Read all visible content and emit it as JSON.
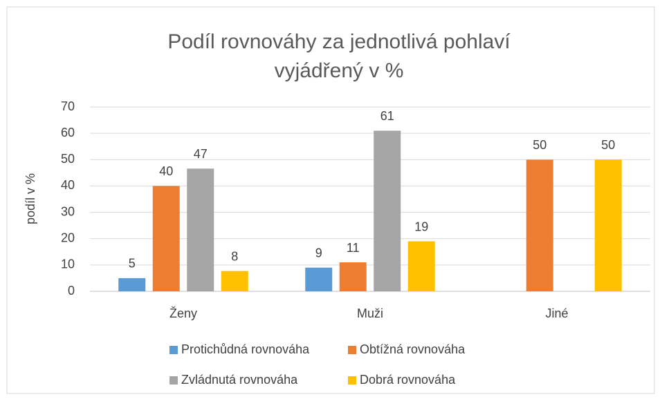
{
  "chart_data": {
    "type": "bar",
    "title": [
      "Podíl rovnováhy za jednotlivá pohlaví",
      "vyjádřený v %"
    ],
    "y_label": "podíl v %",
    "categories": [
      "Ženy",
      "Muži",
      "Jiné"
    ],
    "series": [
      {
        "name": "Protichůdná rovnováha",
        "color": "#5b9bd5",
        "values": [
          5,
          9,
          null
        ],
        "value_labels": [
          "5",
          "9",
          null
        ]
      },
      {
        "name": "Obtížná rovnováha",
        "color": "#ed7d31",
        "values": [
          40,
          11,
          50
        ],
        "value_labels": [
          "40",
          "11",
          "50"
        ]
      },
      {
        "name": "Zvládnutá rovnováha",
        "color": "#a5a5a5",
        "values": [
          46.6,
          61,
          null
        ],
        "value_labels": [
          "47",
          "61",
          null
        ]
      },
      {
        "name": "Dobrá rovnováha",
        "color": "#ffc000",
        "values": [
          7.7,
          19,
          50
        ],
        "value_labels": [
          "8",
          "19",
          "50"
        ]
      }
    ],
    "ylim": [
      0,
      70
    ],
    "yticks": [
      0,
      10,
      20,
      30,
      40,
      50,
      60,
      70
    ],
    "grid": true,
    "legend": "bottom"
  }
}
